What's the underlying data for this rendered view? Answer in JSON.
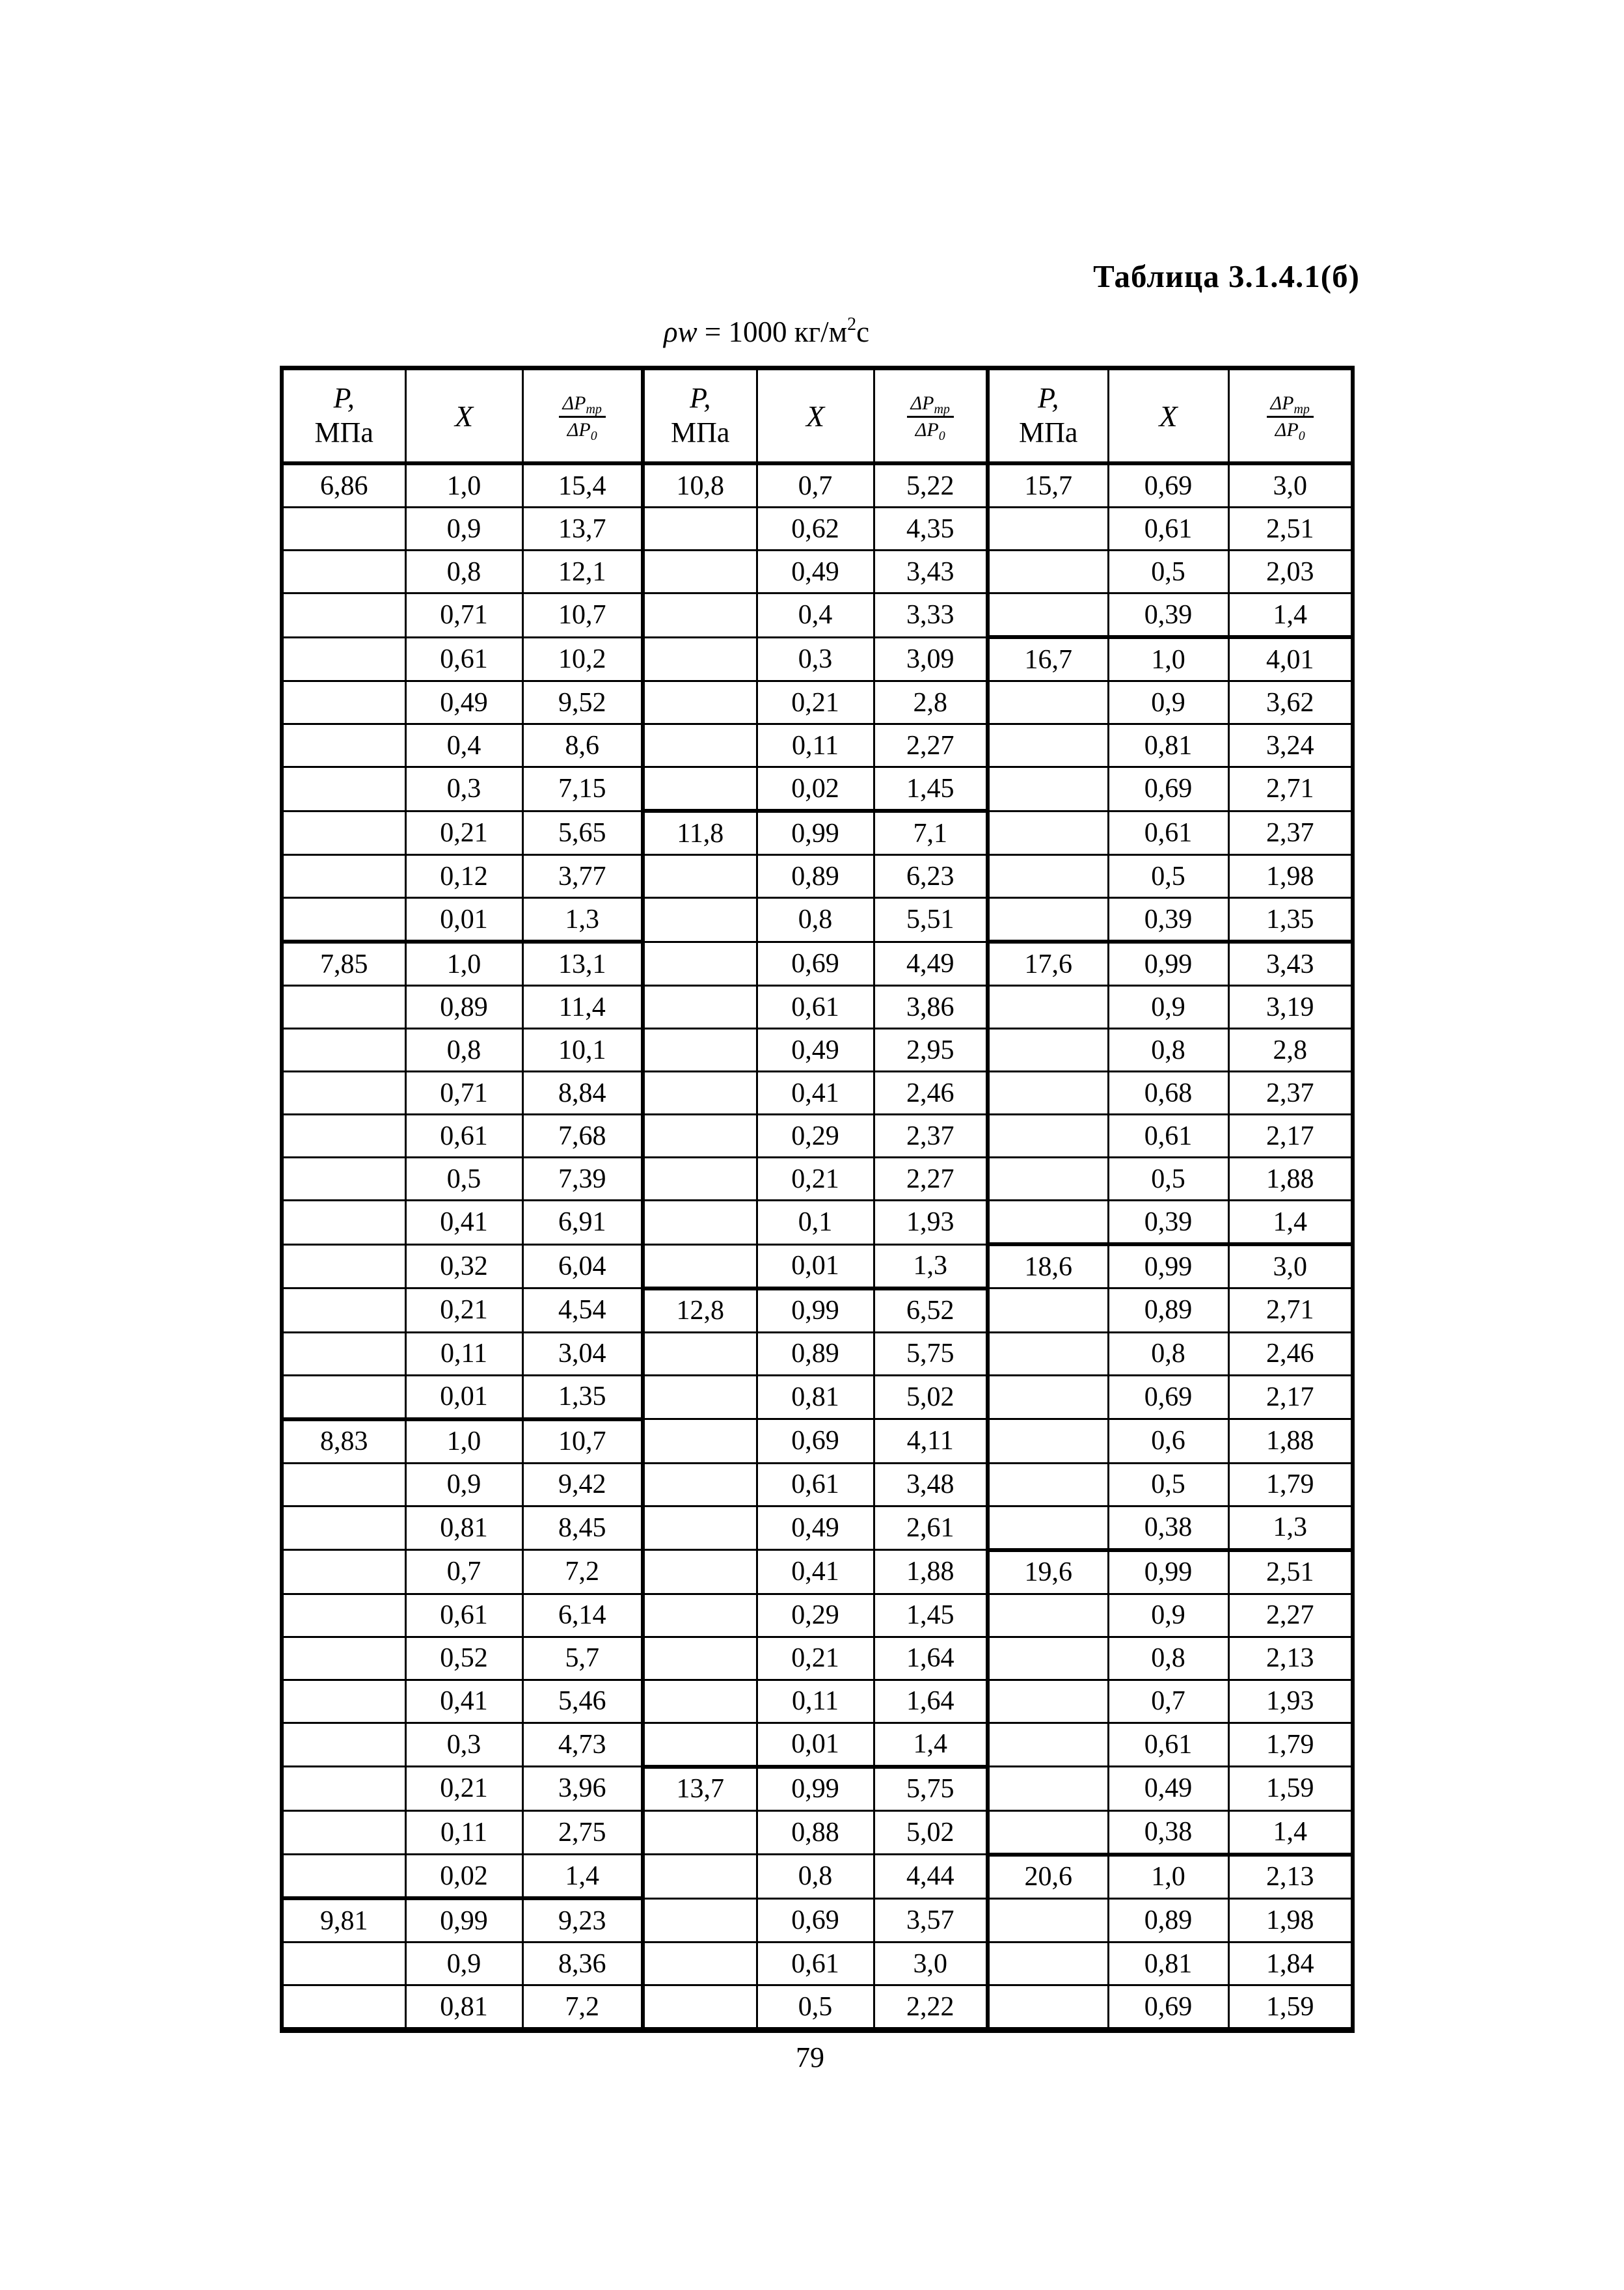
{
  "page": {
    "title": "Таблица 3.1.4.1(б)",
    "subtitle": {
      "rho_w": "ρw",
      "eq": " = 1000 кг/м",
      "sup": "2",
      "unit": "с"
    },
    "page_number": "79"
  },
  "header": {
    "p_label": "P,",
    "p_unit": "МПа",
    "x_label": "X",
    "frac_top": "ΔP",
    "frac_top_sub": "тр",
    "frac_bot": "ΔP",
    "frac_bot_sub": "0"
  },
  "rows": [
    {
      "g1": [
        "6,86",
        "1,0",
        "15,4"
      ],
      "g2": [
        "10,8",
        "0,7",
        "5,22"
      ],
      "g3": [
        "15,7",
        "0,69",
        "3,0"
      ]
    },
    {
      "g1": [
        "",
        "0,9",
        "13,7"
      ],
      "g2": [
        "",
        "0,62",
        "4,35"
      ],
      "g3": [
        "",
        "0,61",
        "2,51"
      ]
    },
    {
      "g1": [
        "",
        "0,8",
        "12,1"
      ],
      "g2": [
        "",
        "0,49",
        "3,43"
      ],
      "g3": [
        "",
        "0,5",
        "2,03"
      ]
    },
    {
      "g1": [
        "",
        "0,71",
        "10,7"
      ],
      "g2": [
        "",
        "0,4",
        "3,33"
      ],
      "g3": [
        "",
        "0,39",
        "1,4"
      ]
    },
    {
      "g1": [
        "",
        "0,61",
        "10,2"
      ],
      "g2": [
        "",
        "0,3",
        "3,09"
      ],
      "g3": [
        "16,7",
        "1,0",
        "4,01"
      ]
    },
    {
      "g1": [
        "",
        "0,49",
        "9,52"
      ],
      "g2": [
        "",
        "0,21",
        "2,8"
      ],
      "g3": [
        "",
        "0,9",
        "3,62"
      ]
    },
    {
      "g1": [
        "",
        "0,4",
        "8,6"
      ],
      "g2": [
        "",
        "0,11",
        "2,27"
      ],
      "g3": [
        "",
        "0,81",
        "3,24"
      ]
    },
    {
      "g1": [
        "",
        "0,3",
        "7,15"
      ],
      "g2": [
        "",
        "0,02",
        "1,45"
      ],
      "g3": [
        "",
        "0,69",
        "2,71"
      ]
    },
    {
      "g1": [
        "",
        "0,21",
        "5,65"
      ],
      "g2": [
        "11,8",
        "0,99",
        "7,1"
      ],
      "g3": [
        "",
        "0,61",
        "2,37"
      ]
    },
    {
      "g1": [
        "",
        "0,12",
        "3,77"
      ],
      "g2": [
        "",
        "0,89",
        "6,23"
      ],
      "g3": [
        "",
        "0,5",
        "1,98"
      ]
    },
    {
      "g1": [
        "",
        "0,01",
        "1,3"
      ],
      "g2": [
        "",
        "0,8",
        "5,51"
      ],
      "g3": [
        "",
        "0,39",
        "1,35"
      ]
    },
    {
      "g1": [
        "7,85",
        "1,0",
        "13,1"
      ],
      "g2": [
        "",
        "0,69",
        "4,49"
      ],
      "g3": [
        "17,6",
        "0,99",
        "3,43"
      ]
    },
    {
      "g1": [
        "",
        "0,89",
        "11,4"
      ],
      "g2": [
        "",
        "0,61",
        "3,86"
      ],
      "g3": [
        "",
        "0,9",
        "3,19"
      ]
    },
    {
      "g1": [
        "",
        "0,8",
        "10,1"
      ],
      "g2": [
        "",
        "0,49",
        "2,95"
      ],
      "g3": [
        "",
        "0,8",
        "2,8"
      ]
    },
    {
      "g1": [
        "",
        "0,71",
        "8,84"
      ],
      "g2": [
        "",
        "0,41",
        "2,46"
      ],
      "g3": [
        "",
        "0,68",
        "2,37"
      ]
    },
    {
      "g1": [
        "",
        "0,61",
        "7,68"
      ],
      "g2": [
        "",
        "0,29",
        "2,37"
      ],
      "g3": [
        "",
        "0,61",
        "2,17"
      ]
    },
    {
      "g1": [
        "",
        "0,5",
        "7,39"
      ],
      "g2": [
        "",
        "0,21",
        "2,27"
      ],
      "g3": [
        "",
        "0,5",
        "1,88"
      ]
    },
    {
      "g1": [
        "",
        "0,41",
        "6,91"
      ],
      "g2": [
        "",
        "0,1",
        "1,93"
      ],
      "g3": [
        "",
        "0,39",
        "1,4"
      ]
    },
    {
      "g1": [
        "",
        "0,32",
        "6,04"
      ],
      "g2": [
        "",
        "0,01",
        "1,3"
      ],
      "g3": [
        "18,6",
        "0,99",
        "3,0"
      ]
    },
    {
      "g1": [
        "",
        "0,21",
        "4,54"
      ],
      "g2": [
        "12,8",
        "0,99",
        "6,52"
      ],
      "g3": [
        "",
        "0,89",
        "2,71"
      ]
    },
    {
      "g1": [
        "",
        "0,11",
        "3,04"
      ],
      "g2": [
        "",
        "0,89",
        "5,75"
      ],
      "g3": [
        "",
        "0,8",
        "2,46"
      ]
    },
    {
      "g1": [
        "",
        "0,01",
        "1,35"
      ],
      "g2": [
        "",
        "0,81",
        "5,02"
      ],
      "g3": [
        "",
        "0,69",
        "2,17"
      ]
    },
    {
      "g1": [
        "8,83",
        "1,0",
        "10,7"
      ],
      "g2": [
        "",
        "0,69",
        "4,11"
      ],
      "g3": [
        "",
        "0,6",
        "1,88"
      ]
    },
    {
      "g1": [
        "",
        "0,9",
        "9,42"
      ],
      "g2": [
        "",
        "0,61",
        "3,48"
      ],
      "g3": [
        "",
        "0,5",
        "1,79"
      ]
    },
    {
      "g1": [
        "",
        "0,81",
        "8,45"
      ],
      "g2": [
        "",
        "0,49",
        "2,61"
      ],
      "g3": [
        "",
        "0,38",
        "1,3"
      ]
    },
    {
      "g1": [
        "",
        "0,7",
        "7,2"
      ],
      "g2": [
        "",
        "0,41",
        "1,88"
      ],
      "g3": [
        "19,6",
        "0,99",
        "2,51"
      ]
    },
    {
      "g1": [
        "",
        "0,61",
        "6,14"
      ],
      "g2": [
        "",
        "0,29",
        "1,45"
      ],
      "g3": [
        "",
        "0,9",
        "2,27"
      ]
    },
    {
      "g1": [
        "",
        "0,52",
        "5,7"
      ],
      "g2": [
        "",
        "0,21",
        "1,64"
      ],
      "g3": [
        "",
        "0,8",
        "2,13"
      ]
    },
    {
      "g1": [
        "",
        "0,41",
        "5,46"
      ],
      "g2": [
        "",
        "0,11",
        "1,64"
      ],
      "g3": [
        "",
        "0,7",
        "1,93"
      ]
    },
    {
      "g1": [
        "",
        "0,3",
        "4,73"
      ],
      "g2": [
        "",
        "0,01",
        "1,4"
      ],
      "g3": [
        "",
        "0,61",
        "1,79"
      ]
    },
    {
      "g1": [
        "",
        "0,21",
        "3,96"
      ],
      "g2": [
        "13,7",
        "0,99",
        "5,75"
      ],
      "g3": [
        "",
        "0,49",
        "1,59"
      ]
    },
    {
      "g1": [
        "",
        "0,11",
        "2,75"
      ],
      "g2": [
        "",
        "0,88",
        "5,02"
      ],
      "g3": [
        "",
        "0,38",
        "1,4"
      ]
    },
    {
      "g1": [
        "",
        "0,02",
        "1,4"
      ],
      "g2": [
        "",
        "0,8",
        "4,44"
      ],
      "g3": [
        "20,6",
        "1,0",
        "2,13"
      ]
    },
    {
      "g1": [
        "9,81",
        "0,99",
        "9,23"
      ],
      "g2": [
        "",
        "0,69",
        "3,57"
      ],
      "g3": [
        "",
        "0,89",
        "1,98"
      ]
    },
    {
      "g1": [
        "",
        "0,9",
        "8,36"
      ],
      "g2": [
        "",
        "0,61",
        "3,0"
      ],
      "g3": [
        "",
        "0,81",
        "1,84"
      ]
    },
    {
      "g1": [
        "",
        "0,81",
        "7,2"
      ],
      "g2": [
        "",
        "0,5",
        "2,22"
      ],
      "g3": [
        "",
        "0,69",
        "1,59"
      ]
    }
  ]
}
